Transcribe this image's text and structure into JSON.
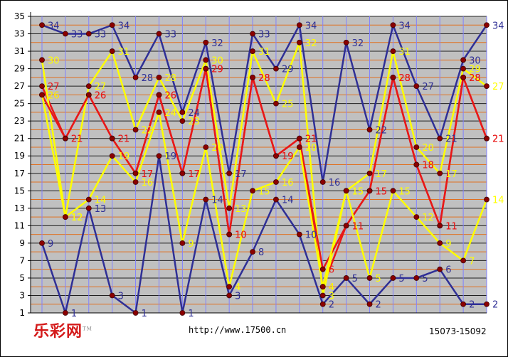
{
  "footer": {
    "logo": "乐彩网",
    "logo_tm": "TM",
    "url": "http://www.17500.cn",
    "period": "15073-15092"
  },
  "chart_data": {
    "type": "line",
    "title": "",
    "xlabel": "",
    "ylabel": "",
    "ylim": [
      1,
      35
    ],
    "yticks": [
      1,
      3,
      5,
      7,
      9,
      11,
      13,
      15,
      17,
      19,
      21,
      23,
      25,
      27,
      29,
      31,
      33,
      35
    ],
    "grid": true,
    "x": [
      1,
      2,
      3,
      4,
      5,
      6,
      7,
      8,
      9,
      10,
      11,
      12,
      13,
      14,
      15,
      16,
      17,
      18,
      19,
      20
    ],
    "series": [
      {
        "color": "#2f2f96",
        "values": [
          34,
          33,
          33,
          34,
          28,
          33,
          24,
          32,
          17,
          33,
          29,
          34,
          16,
          32,
          22,
          34,
          27,
          21,
          30,
          34
        ]
      },
      {
        "color": "#e81818",
        "values": [
          27,
          21,
          26,
          21,
          17,
          26,
          17,
          29,
          10,
          28,
          19,
          21,
          4,
          11,
          15,
          28,
          18,
          11,
          28,
          21
        ]
      },
      {
        "color": "#ffff00",
        "values": [
          30,
          12,
          27,
          31,
          22,
          28,
          23,
          30,
          13,
          31,
          25,
          32,
          3,
          15,
          17,
          31,
          20,
          17,
          29,
          27
        ]
      },
      {
        "color": "#e81818",
        "values": [
          26,
          21,
          26,
          21,
          17,
          26,
          17,
          29,
          10,
          28,
          19,
          21,
          6,
          11,
          15,
          28,
          18,
          11,
          28,
          21
        ]
      },
      {
        "color": "#ffff00",
        "values": [
          26,
          12,
          14,
          19,
          16,
          24,
          9,
          20,
          4,
          15,
          16,
          20,
          4,
          15,
          5,
          15,
          12,
          9,
          7,
          14
        ]
      },
      {
        "color": "#2f2f96",
        "values": [
          9,
          1,
          13,
          3,
          1,
          19,
          1,
          14,
          3,
          8,
          14,
          10,
          2,
          5,
          2,
          5,
          5,
          6,
          2,
          2
        ]
      }
    ]
  }
}
